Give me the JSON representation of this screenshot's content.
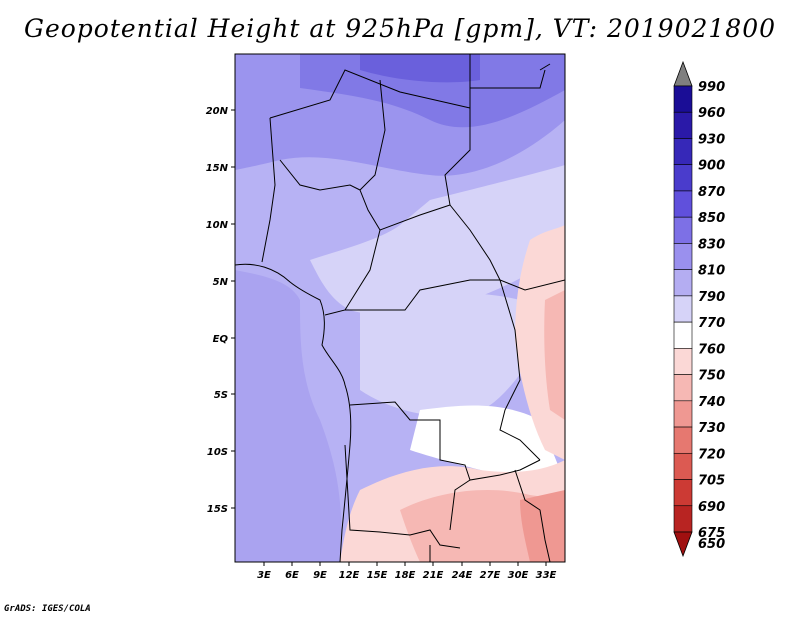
{
  "title": "Geopotential Height at 925hPa [gpm], VT: 2019021800",
  "credit": "GrADS: IGES/COLA",
  "map": {
    "lat_labels": [
      "20N",
      "15N",
      "10N",
      "5N",
      "EQ",
      "5S",
      "10S",
      "15S"
    ],
    "lon_labels": [
      "3E",
      "6E",
      "9E",
      "12E",
      "15E",
      "18E",
      "21E",
      "24E",
      "27E",
      "30E",
      "33E"
    ]
  },
  "colorbar": {
    "levels": [
      "990",
      "960",
      "930",
      "900",
      "870",
      "850",
      "830",
      "810",
      "790",
      "770",
      "760",
      "750",
      "740",
      "730",
      "720",
      "705",
      "690",
      "675",
      "650"
    ],
    "colors": [
      "#7f7f7f",
      "#1a0d96",
      "#2a19a8",
      "#3628b8",
      "#4a3ccc",
      "#6050dc",
      "#7d70e6",
      "#9a90ee",
      "#b4adf2",
      "#d6d3f8",
      "#ffffff",
      "#fbd8d6",
      "#f6b8b4",
      "#ef9892",
      "#e67870",
      "#dc5a52",
      "#cc3a34",
      "#b82422",
      "#a01010"
    ]
  }
}
